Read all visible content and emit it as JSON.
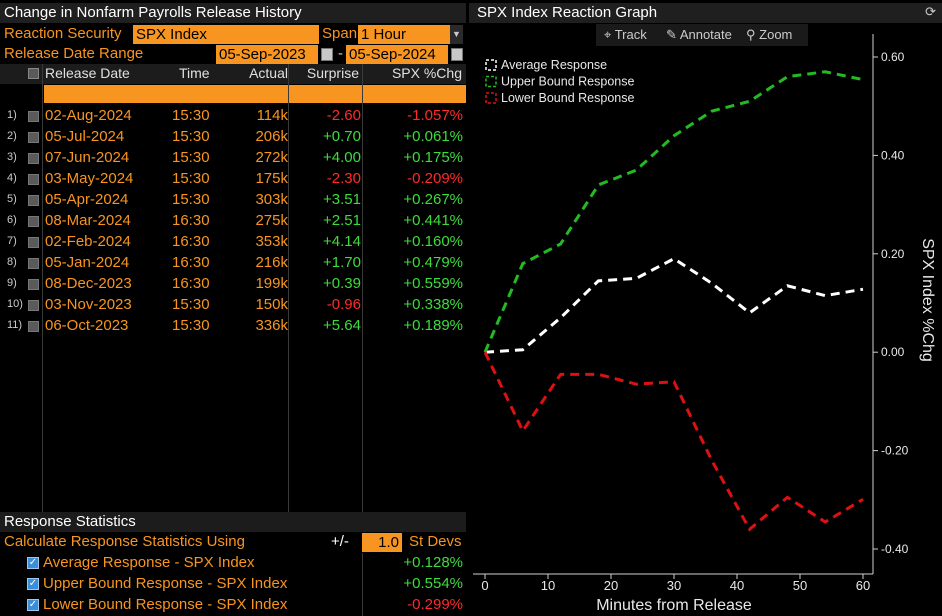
{
  "left_panel": {
    "title": "Change in Nonfarm Payrolls Release History",
    "reaction_security_label": "Reaction Security",
    "reaction_security_value": "SPX Index",
    "span_label": "Span",
    "span_value": "1 Hour",
    "release_range_label": "Release Date Range",
    "range_start": "05-Sep-2023",
    "range_sep": "-",
    "range_end": "05-Sep-2024",
    "columns": [
      "Release Date",
      "Time",
      "Actual",
      "Surprise",
      "SPX %Chg"
    ],
    "rows": [
      {
        "idx": "1)",
        "date": "02-Aug-2024",
        "time": "15:30",
        "actual": "114k",
        "surprise": "-2.60",
        "pct": "-1.057%"
      },
      {
        "idx": "2)",
        "date": "05-Jul-2024",
        "time": "15:30",
        "actual": "206k",
        "surprise": "+0.70",
        "pct": "+0.061%"
      },
      {
        "idx": "3)",
        "date": "07-Jun-2024",
        "time": "15:30",
        "actual": "272k",
        "surprise": "+4.00",
        "pct": "+0.175%"
      },
      {
        "idx": "4)",
        "date": "03-May-2024",
        "time": "15:30",
        "actual": "175k",
        "surprise": "-2.30",
        "pct": "-0.209%"
      },
      {
        "idx": "5)",
        "date": "05-Apr-2024",
        "time": "15:30",
        "actual": "303k",
        "surprise": "+3.51",
        "pct": "+0.267%"
      },
      {
        "idx": "6)",
        "date": "08-Mar-2024",
        "time": "16:30",
        "actual": "275k",
        "surprise": "+2.51",
        "pct": "+0.441%"
      },
      {
        "idx": "7)",
        "date": "02-Feb-2024",
        "time": "16:30",
        "actual": "353k",
        "surprise": "+4.14",
        "pct": "+0.160%"
      },
      {
        "idx": "8)",
        "date": "05-Jan-2024",
        "time": "16:30",
        "actual": "216k",
        "surprise": "+1.70",
        "pct": "+0.479%"
      },
      {
        "idx": "9)",
        "date": "08-Dec-2023",
        "time": "16:30",
        "actual": "199k",
        "surprise": "+0.39",
        "pct": "+0.559%"
      },
      {
        "idx": "10)",
        "date": "03-Nov-2023",
        "time": "15:30",
        "actual": "150k",
        "surprise": "-0.96",
        "pct": "+0.338%"
      },
      {
        "idx": "11)",
        "date": "06-Oct-2023",
        "time": "15:30",
        "actual": "336k",
        "surprise": "+5.64",
        "pct": "+0.189%"
      }
    ],
    "stats": {
      "title": "Response Statistics",
      "calc_label": "Calculate Response Statistics Using",
      "plusminus": "+/-",
      "stdev_value": "1.0",
      "stdev_label": "St Devs",
      "items": [
        {
          "label": "Average Response - SPX Index",
          "value": "+0.128%"
        },
        {
          "label": "Upper Bound Response - SPX Index",
          "value": "+0.554%"
        },
        {
          "label": "Lower Bound Response - SPX Index",
          "value": "-0.299%"
        }
      ]
    },
    "colors": {
      "accent": "#f79520",
      "positive": "#3ddc3d",
      "negative": "#ff2a2a"
    }
  },
  "right_panel": {
    "title": "SPX Index Reaction Graph",
    "toolbar": {
      "track": "Track",
      "annotate": "Annotate",
      "zoom": "Zoom"
    },
    "refresh_icon": "refresh-icon"
  },
  "chart_data": {
    "type": "line",
    "xlabel": "Minutes from Release",
    "ylabel": "SPX Index %Chg",
    "xlim": [
      0,
      60
    ],
    "ylim": [
      -0.4,
      0.6
    ],
    "x_ticks": [
      "0",
      "10",
      "20",
      "30",
      "40",
      "50",
      "60"
    ],
    "y_ticks": [
      "0.60",
      "0.40",
      "0.20",
      "0.00",
      "-0.20",
      "-0.40"
    ],
    "legend_position": "top-left",
    "grid": false,
    "series": [
      {
        "name": "Average Response",
        "color": "#ffffff",
        "x": [
          0,
          6,
          12,
          18,
          24,
          30,
          36,
          42,
          48,
          54,
          60
        ],
        "y": [
          0.0,
          0.005,
          0.07,
          0.145,
          0.15,
          0.19,
          0.14,
          0.08,
          0.135,
          0.115,
          0.128
        ]
      },
      {
        "name": "Upper Bound Response",
        "color": "#22bb22",
        "x": [
          0,
          6,
          12,
          18,
          24,
          30,
          36,
          42,
          48,
          54,
          60
        ],
        "y": [
          0.0,
          0.18,
          0.22,
          0.34,
          0.37,
          0.44,
          0.49,
          0.51,
          0.56,
          0.57,
          0.554
        ]
      },
      {
        "name": "Lower Bound Response",
        "color": "#dd1111",
        "x": [
          0,
          6,
          12,
          18,
          24,
          30,
          36,
          42,
          48,
          54,
          60
        ],
        "y": [
          0.0,
          -0.16,
          -0.045,
          -0.045,
          -0.065,
          -0.06,
          -0.22,
          -0.36,
          -0.295,
          -0.345,
          -0.299
        ]
      }
    ]
  }
}
